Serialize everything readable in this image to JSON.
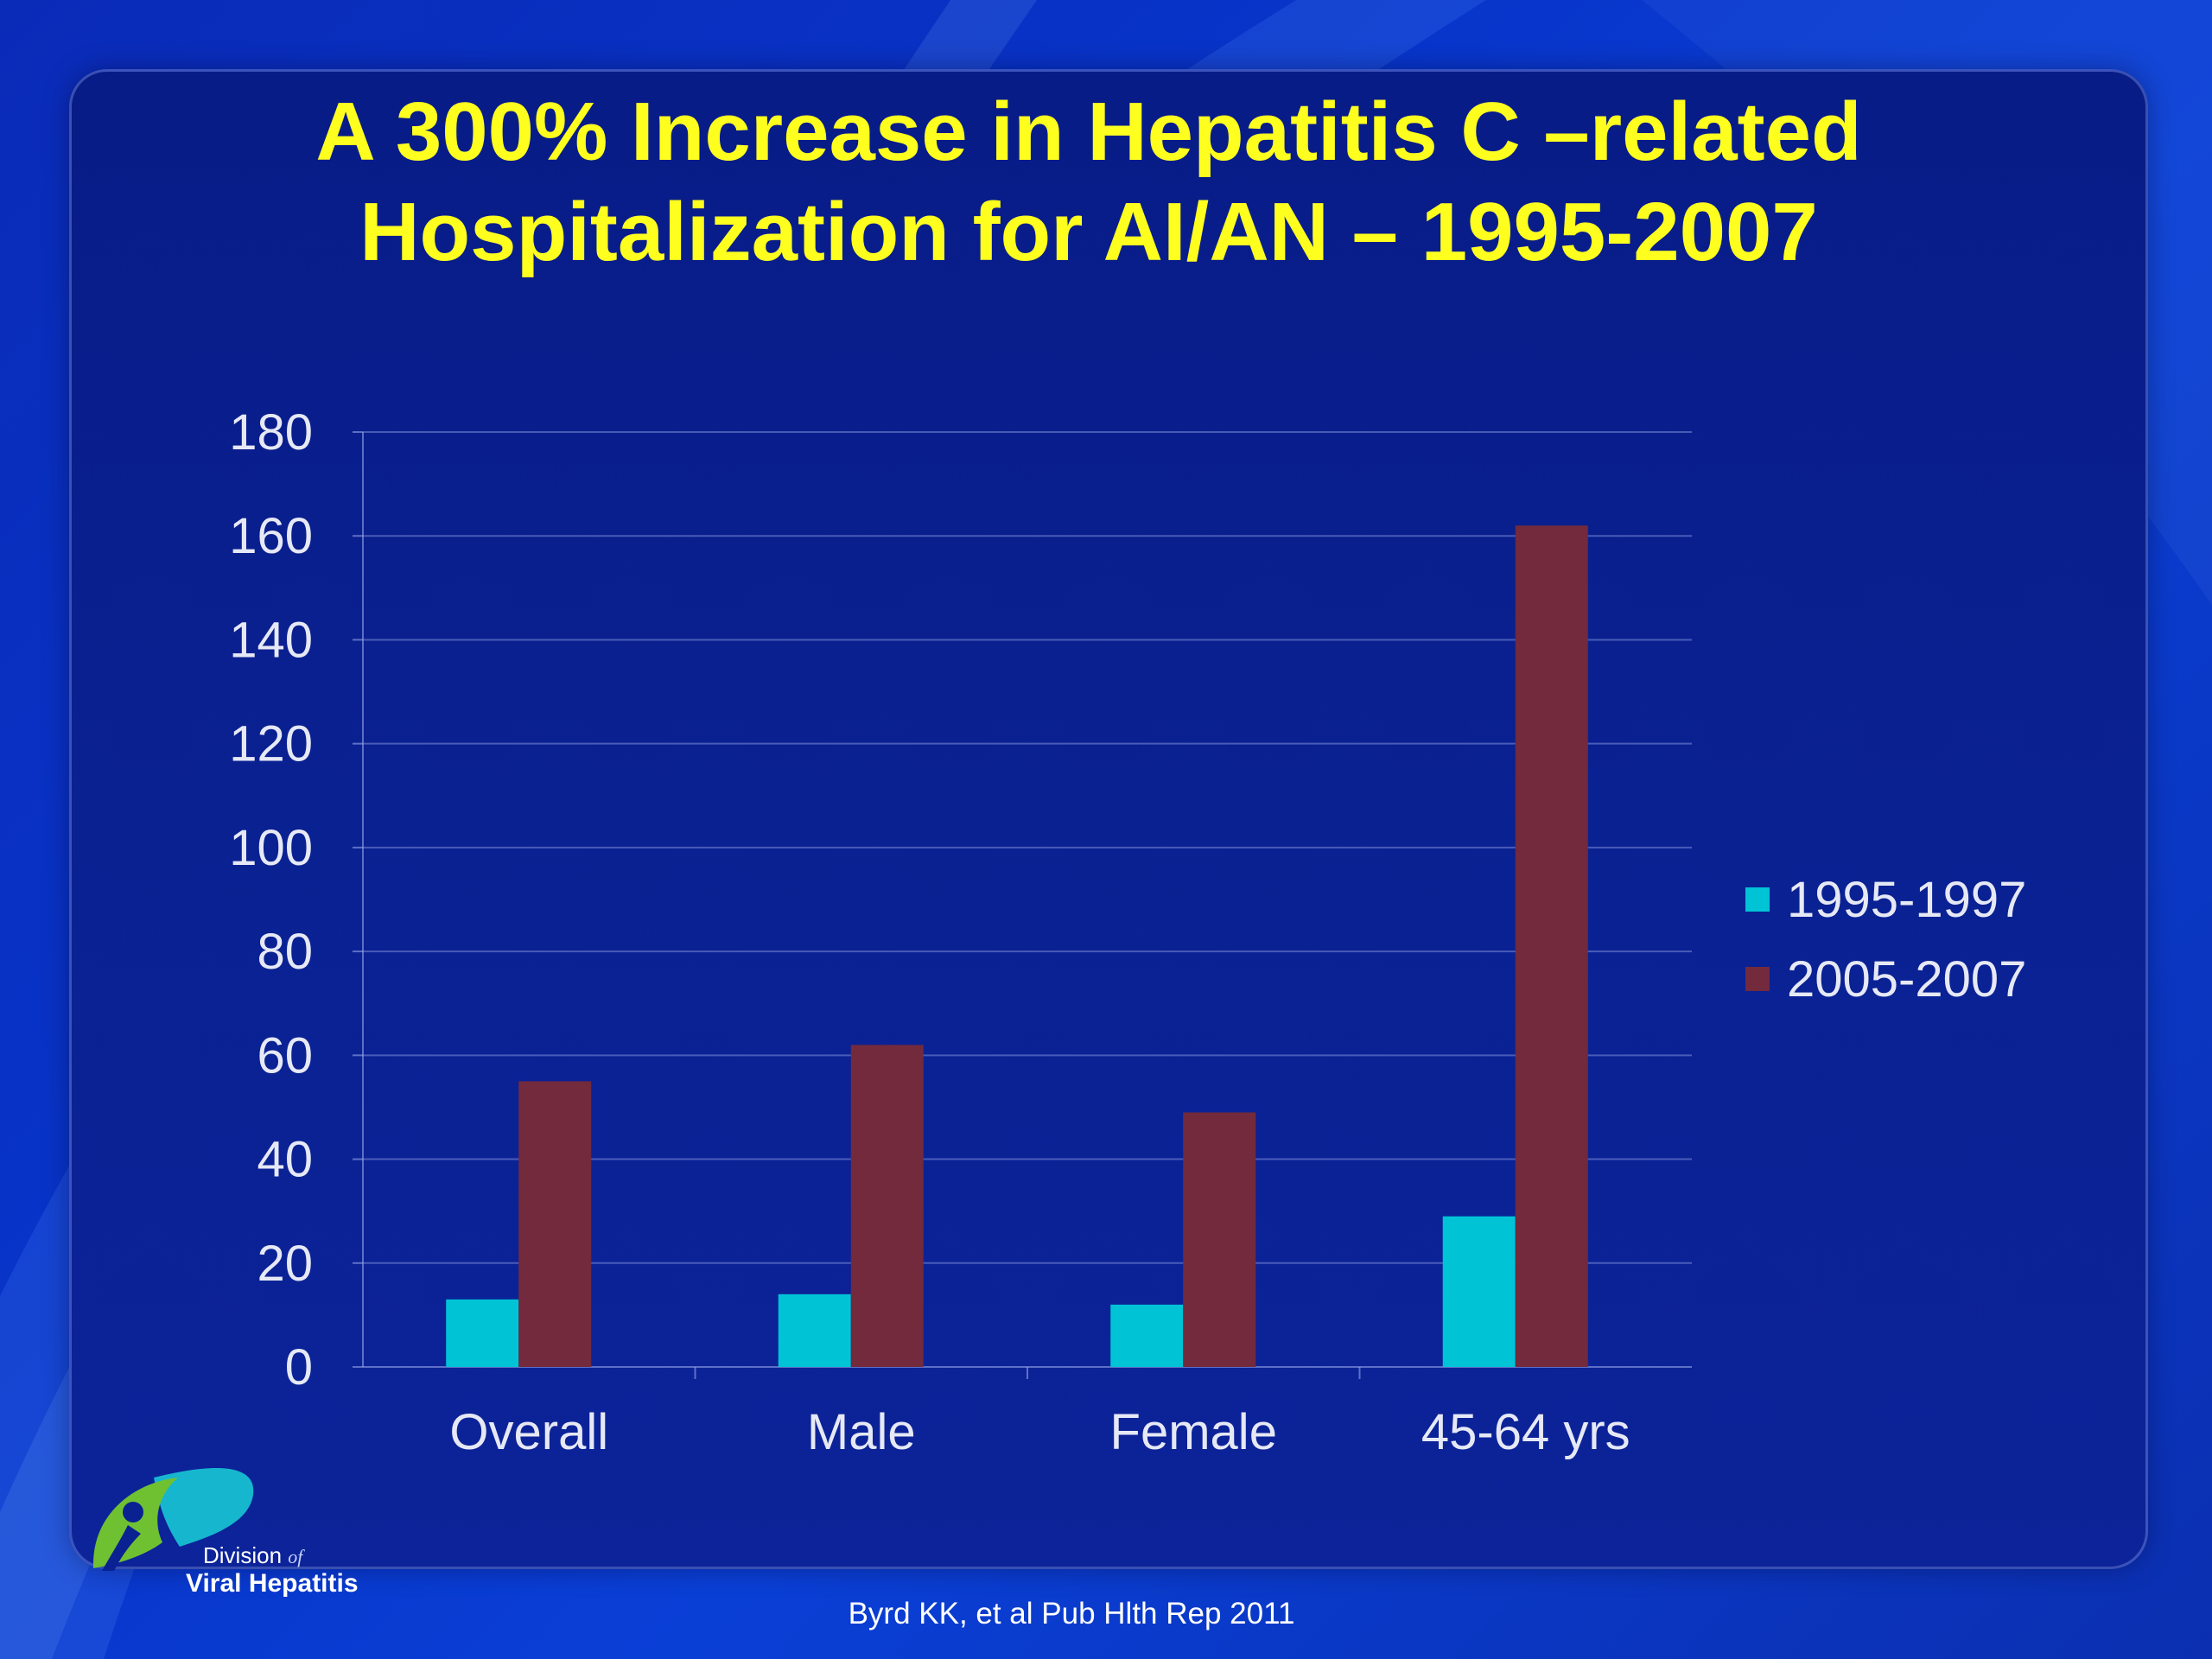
{
  "title": {
    "line1": "A 300% Increase in Hepatitis C –related",
    "line2": "Hospitalization for AI/AN – 1995-2007"
  },
  "logo": {
    "line1": "Division",
    "line1_of": "of",
    "line2": "Viral Hepatitis"
  },
  "source": "Byrd KK, et al Pub Hlth Rep 2011",
  "colors": {
    "series_1995": "#00c4d6",
    "series_2005": "#722a3c",
    "title": "#ffff1f",
    "axis_text": "#e6e9f5"
  },
  "chart_data": {
    "type": "bar",
    "categories": [
      "Overall",
      "Male",
      "Female",
      "45-64 yrs"
    ],
    "series": [
      {
        "name": "1995-1997",
        "values": [
          13,
          14,
          12,
          29
        ]
      },
      {
        "name": "2005-2007",
        "values": [
          55,
          62,
          49,
          162
        ]
      }
    ],
    "y_ticks": [
      0,
      20,
      40,
      60,
      80,
      100,
      120,
      140,
      160,
      180
    ],
    "ylim": [
      0,
      180
    ],
    "grid": true,
    "legend_position": "right"
  }
}
